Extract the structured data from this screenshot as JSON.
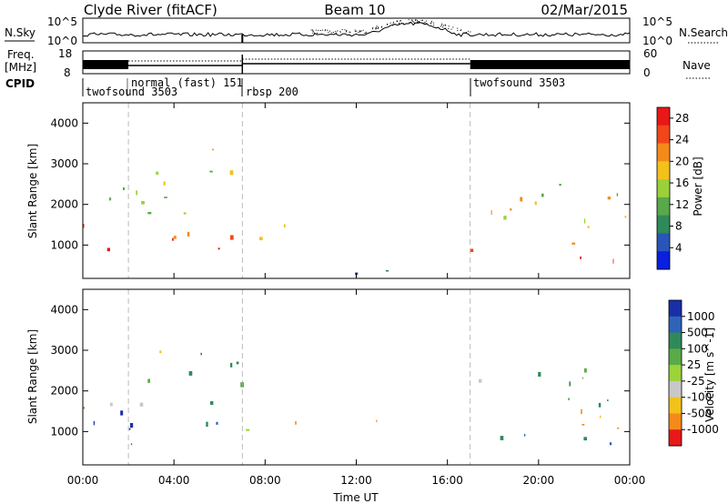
{
  "header": {
    "station": "Clyde River (fitACF)",
    "beam": "Beam 10",
    "date": "02/Mar/2015"
  },
  "top_panels": {
    "nsky_label": "N.Sky",
    "nsky_ticks": [
      "10^5",
      "10^0"
    ],
    "nsearch_label": "N.Search",
    "nsearch_ticks": [
      "10^5",
      "10^0"
    ],
    "freq_label": "Freq.",
    "freq_unit": "[MHz]",
    "freq_ticks": [
      "18",
      "8"
    ],
    "nave_label": "Nave",
    "nave_ticks": [
      "60",
      "0"
    ],
    "cpid_label": "CPID",
    "cpid_segments": [
      {
        "label": "twofsound 3503",
        "start_h": 0,
        "end_h": 2
      },
      {
        "label": "normal (fast) 151",
        "start_h": 2,
        "end_h": 7
      },
      {
        "label": "rbsp 200",
        "start_h": 7,
        "end_h": 17
      },
      {
        "label": "twofsound 3503",
        "start_h": 17,
        "end_h": 24
      }
    ]
  },
  "chart_data": [
    {
      "type": "heatmap",
      "title": "Power",
      "xlabel": "Time UT",
      "ylabel": "Slant Range [km]",
      "xlim": [
        0,
        24
      ],
      "ylim": [
        180,
        4500
      ],
      "x_ticks": [
        "00:00",
        "04:00",
        "08:00",
        "12:00",
        "16:00",
        "20:00",
        "00:00"
      ],
      "y_ticks": [
        1000,
        2000,
        3000,
        4000
      ],
      "colorbar": {
        "label": "Power [dB]",
        "ticks": [
          4,
          8,
          12,
          16,
          20,
          24,
          28
        ],
        "range": [
          0,
          30
        ],
        "colors": [
          "#0a1fe0",
          "#2a55b8",
          "#2f8a5a",
          "#59a84a",
          "#9cd03a",
          "#f2c21a",
          "#f58a1a",
          "#f2461a",
          "#e81818"
        ]
      },
      "approx_regions": [
        {
          "t": [
            0.0,
            2.0
          ],
          "range_km": [
            600,
            1600
          ],
          "value": 28
        },
        {
          "t": [
            2.0,
            4.8
          ],
          "range_km": [
            600,
            1500
          ],
          "value": 27
        },
        {
          "t": [
            5.3,
            7.0
          ],
          "range_km": [
            600,
            1600
          ],
          "value": 26
        },
        {
          "t": [
            7.0,
            9.5
          ],
          "range_km": [
            900,
            1600
          ],
          "value": 22
        },
        {
          "t": [
            0.0,
            7.0
          ],
          "range_km": [
            1600,
            3000
          ],
          "value": 14
        },
        {
          "t": [
            4.0,
            6.2
          ],
          "range_km": [
            3300,
            3550
          ],
          "value": 28
        },
        {
          "t": [
            17.0,
            24.0
          ],
          "range_km": [
            600,
            1100
          ],
          "value": 28
        },
        {
          "t": [
            17.0,
            24.0
          ],
          "range_km": [
            1100,
            2200
          ],
          "value": 18
        },
        {
          "t": [
            17.0,
            24.0
          ],
          "range_km": [
            2200,
            2600
          ],
          "value": 9
        },
        {
          "t": [
            10.0,
            16.5
          ],
          "range_km": [
            180,
            450
          ],
          "value": 8
        }
      ]
    },
    {
      "type": "heatmap",
      "title": "Velocity",
      "xlabel": "Time UT",
      "ylabel": "Slant Range [km]",
      "xlim": [
        0,
        24
      ],
      "ylim": [
        180,
        4500
      ],
      "x_ticks": [
        "00:00",
        "04:00",
        "08:00",
        "12:00",
        "16:00",
        "20:00",
        "00:00"
      ],
      "y_ticks": [
        1000,
        2000,
        3000,
        4000
      ],
      "colorbar": {
        "label": "Velocity [m s^-1]",
        "ticks": [
          "1000",
          "500",
          "100",
          "25",
          "-25",
          "-100",
          "-500",
          "-1000"
        ],
        "colors": [
          "#1a2ea8",
          "#2e64b8",
          "#2f8a5a",
          "#5aaa48",
          "#9bd33a",
          "#c8c8c8",
          "#f2c21a",
          "#f58a1a",
          "#e81818"
        ]
      },
      "approx_regions": [
        {
          "t": [
            0.0,
            2.0
          ],
          "range_km": [
            600,
            1600
          ],
          "value": 900
        },
        {
          "t": [
            2.0,
            5.0
          ],
          "range_km": [
            600,
            1400
          ],
          "value": 800
        },
        {
          "t": [
            5.0,
            7.0
          ],
          "range_km": [
            700,
            1500
          ],
          "value": 300
        },
        {
          "t": [
            7.0,
            9.5
          ],
          "range_km": [
            900,
            1600
          ],
          "value": -150
        },
        {
          "t": [
            0.0,
            7.0
          ],
          "range_km": [
            1600,
            3000
          ],
          "value": 60
        },
        {
          "t": [
            17.0,
            24.0
          ],
          "range_km": [
            600,
            1100
          ],
          "value": 300
        },
        {
          "t": [
            17.0,
            24.0
          ],
          "range_km": [
            1100,
            1600
          ],
          "value": -300
        },
        {
          "t": [
            17.0,
            24.0
          ],
          "range_km": [
            1600,
            2600
          ],
          "value": 0
        },
        {
          "t": [
            10.5,
            13.0
          ],
          "range_km": [
            1000,
            1300
          ],
          "value": -200
        }
      ]
    }
  ]
}
